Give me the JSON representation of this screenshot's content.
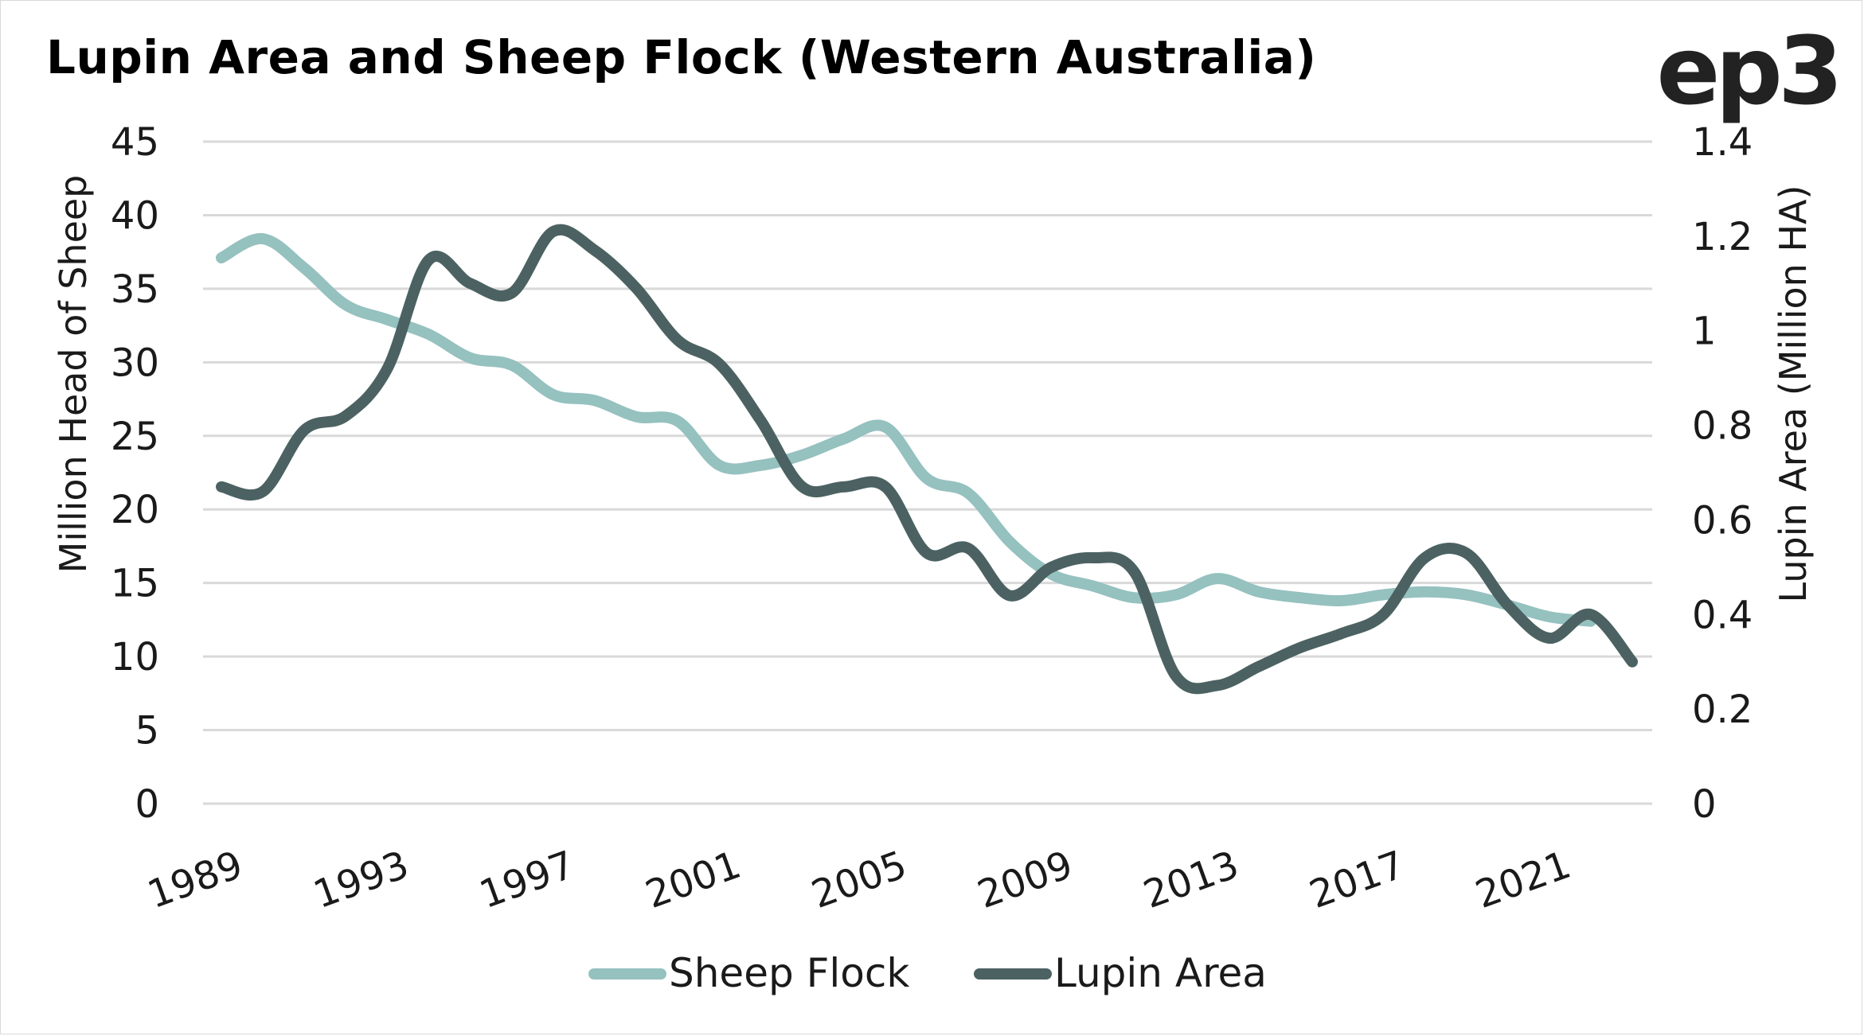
{
  "header": {
    "title": "Lupin Area and Sheep Flock (Western Australia)",
    "logo": "ep3"
  },
  "chart_data": {
    "type": "line",
    "title": "Lupin Area and Sheep Flock (Western Australia)",
    "xlabel": "",
    "ylabel": "Million Head of Sheep",
    "y2label": "Lupin Area (Million HA)",
    "ylim": [
      0,
      45
    ],
    "y2lim": [
      0,
      1.4
    ],
    "yticks": [
      "0",
      "5",
      "10",
      "15",
      "20",
      "25",
      "30",
      "35",
      "40",
      "45"
    ],
    "y2ticks": [
      "0",
      "0.2",
      "0.4",
      "0.6",
      "0.8",
      "1",
      "1.2",
      "1.4"
    ],
    "xticks": [
      "1989",
      "1993",
      "1997",
      "2001",
      "2005",
      "2009",
      "2013",
      "2017",
      "2021"
    ],
    "grid": true,
    "legend_position": "bottom",
    "smoothed": true,
    "x": [
      1989,
      1990,
      1991,
      1992,
      1993,
      1994,
      1995,
      1996,
      1997,
      1998,
      1999,
      2000,
      2001,
      2002,
      2003,
      2004,
      2005,
      2006,
      2007,
      2008,
      2009,
      2010,
      2011,
      2012,
      2013,
      2014,
      2015,
      2016,
      2017,
      2018,
      2019,
      2020,
      2021,
      2022,
      2023
    ],
    "series": [
      {
        "name": "Sheep Flock",
        "axis": "left",
        "color": "#95c1bf",
        "values": [
          37.1,
          38.4,
          36.4,
          33.9,
          32.9,
          31.9,
          30.3,
          29.8,
          27.8,
          27.4,
          26.3,
          26.0,
          23.0,
          23.0,
          23.7,
          24.8,
          25.6,
          22.1,
          21.1,
          17.8,
          15.6,
          14.8,
          14.0,
          14.2,
          15.3,
          14.4,
          14.0,
          13.8,
          14.2,
          14.4,
          14.2,
          13.5,
          12.7,
          12.4,
          null
        ]
      },
      {
        "name": "Lupin Area",
        "axis": "right",
        "color": "#4c6262",
        "values": [
          0.67,
          0.66,
          0.79,
          0.82,
          0.92,
          1.15,
          1.1,
          1.08,
          1.21,
          1.17,
          1.09,
          0.98,
          0.93,
          0.81,
          0.67,
          0.67,
          0.67,
          0.53,
          0.54,
          0.44,
          0.5,
          0.52,
          0.49,
          0.27,
          0.25,
          0.29,
          0.33,
          0.36,
          0.4,
          0.52,
          0.53,
          0.42,
          0.35,
          0.4,
          0.3
        ]
      }
    ]
  }
}
